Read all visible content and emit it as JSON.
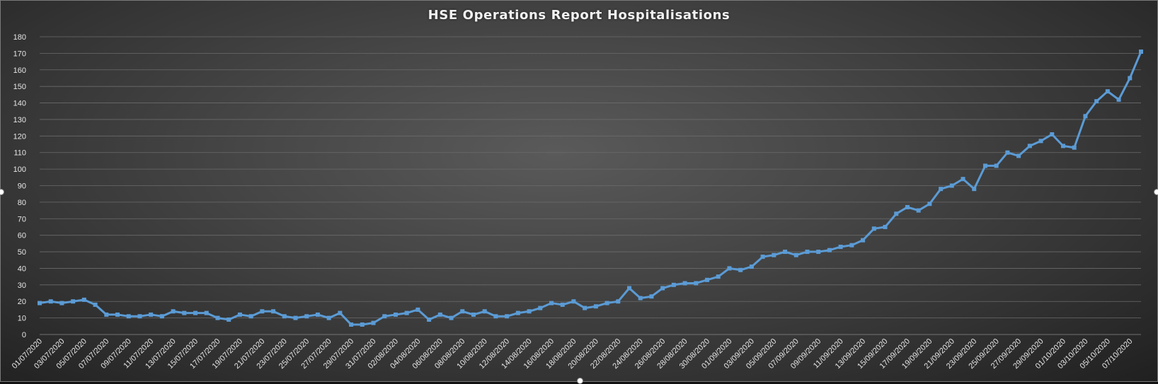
{
  "chart_data": {
    "type": "line",
    "title": "HSE Operations Report Hospitalisations",
    "xlabel": "",
    "ylabel": "",
    "ylim": [
      0,
      180
    ],
    "y_ticks": [
      0,
      10,
      20,
      30,
      40,
      50,
      60,
      70,
      80,
      90,
      100,
      110,
      120,
      130,
      140,
      150,
      160,
      170,
      180
    ],
    "grid": true,
    "legend": "none",
    "line_color": "#5b9bd5",
    "x_tick_labels": [
      "01/07/2020",
      "03/07/2020",
      "05/07/2020",
      "07/07/2020",
      "09/07/2020",
      "11/07/2020",
      "13/07/2020",
      "15/07/2020",
      "17/07/2020",
      "19/07/2020",
      "21/07/2020",
      "23/07/2020",
      "25/07/2020",
      "27/07/2020",
      "29/07/2020",
      "31/07/2020",
      "02/08/2020",
      "04/08/2020",
      "06/08/2020",
      "08/08/2020",
      "10/08/2020",
      "12/08/2020",
      "14/08/2020",
      "16/08/2020",
      "18/08/2020",
      "20/08/2020",
      "22/08/2020",
      "24/08/2020",
      "26/08/2020",
      "28/08/2020",
      "30/08/2020",
      "01/09/2020",
      "03/09/2020",
      "05/09/2020",
      "07/09/2020",
      "09/09/2020",
      "11/09/2020",
      "13/09/2020",
      "15/09/2020",
      "17/09/2020",
      "19/09/2020",
      "21/09/2020",
      "23/09/2020",
      "25/09/2020",
      "27/09/2020",
      "29/09/2020",
      "01/10/2020",
      "03/10/2020",
      "05/10/2020",
      "07/10/2020"
    ],
    "x_start": "01/07/2020",
    "x_end": "08/10/2020",
    "series": [
      {
        "values": [
          19,
          20,
          19,
          20,
          21,
          18,
          12,
          12,
          11,
          11,
          12,
          11,
          14,
          13,
          13,
          13,
          10,
          9,
          12,
          11,
          14,
          14,
          11,
          10,
          11,
          12,
          10,
          13,
          6,
          6,
          7,
          11,
          12,
          13,
          15,
          9,
          12,
          10,
          14,
          12,
          14,
          11,
          11,
          13,
          14,
          16,
          19,
          18,
          20,
          16,
          17,
          19,
          20,
          28,
          22,
          23,
          28,
          30,
          31,
          31,
          33,
          35,
          40,
          39,
          41,
          47,
          48,
          50,
          48,
          50,
          50,
          51,
          53,
          54,
          57,
          64,
          65,
          73,
          77,
          75,
          79,
          88,
          90,
          94,
          88,
          102,
          102,
          110,
          108,
          114,
          117,
          121,
          114,
          113,
          132,
          141,
          147,
          142,
          155,
          171
        ]
      }
    ]
  }
}
